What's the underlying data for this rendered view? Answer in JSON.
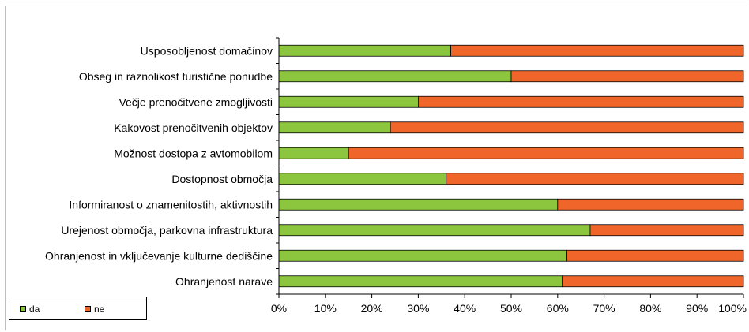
{
  "chart_data": {
    "type": "bar",
    "orientation": "horizontal",
    "stacked": "percent",
    "categories": [
      "Usposobljenost domačinov",
      "Obseg in raznolikost turistične ponudbe",
      "Večje prenočitvene zmogljivosti",
      "Kakovost prenočitvenih objektov",
      "Možnost dostopa z avtomobilom",
      "Dostopnost območja",
      "Informiranost o znamenitostih, aktivnostih",
      "Urejenost območja, parkovna infrastruktura",
      "Ohranjenost in vključevanje kulturne dediščine",
      "Ohranjenost narave"
    ],
    "series": [
      {
        "name": "da",
        "color": "#8cc63f",
        "values": [
          37,
          50,
          30,
          24,
          15,
          36,
          60,
          67,
          62,
          61
        ]
      },
      {
        "name": "ne",
        "color": "#f0652a",
        "values": [
          63,
          50,
          70,
          76,
          85,
          64,
          40,
          33,
          38,
          39
        ]
      }
    ],
    "xlim": [
      0,
      100
    ],
    "xticks": [
      "0%",
      "10%",
      "20%",
      "30%",
      "40%",
      "50%",
      "60%",
      "70%",
      "80%",
      "90%",
      "100%"
    ],
    "title": "",
    "xlabel": "",
    "ylabel": "",
    "grid": false,
    "legend_position": "bottom-left"
  }
}
